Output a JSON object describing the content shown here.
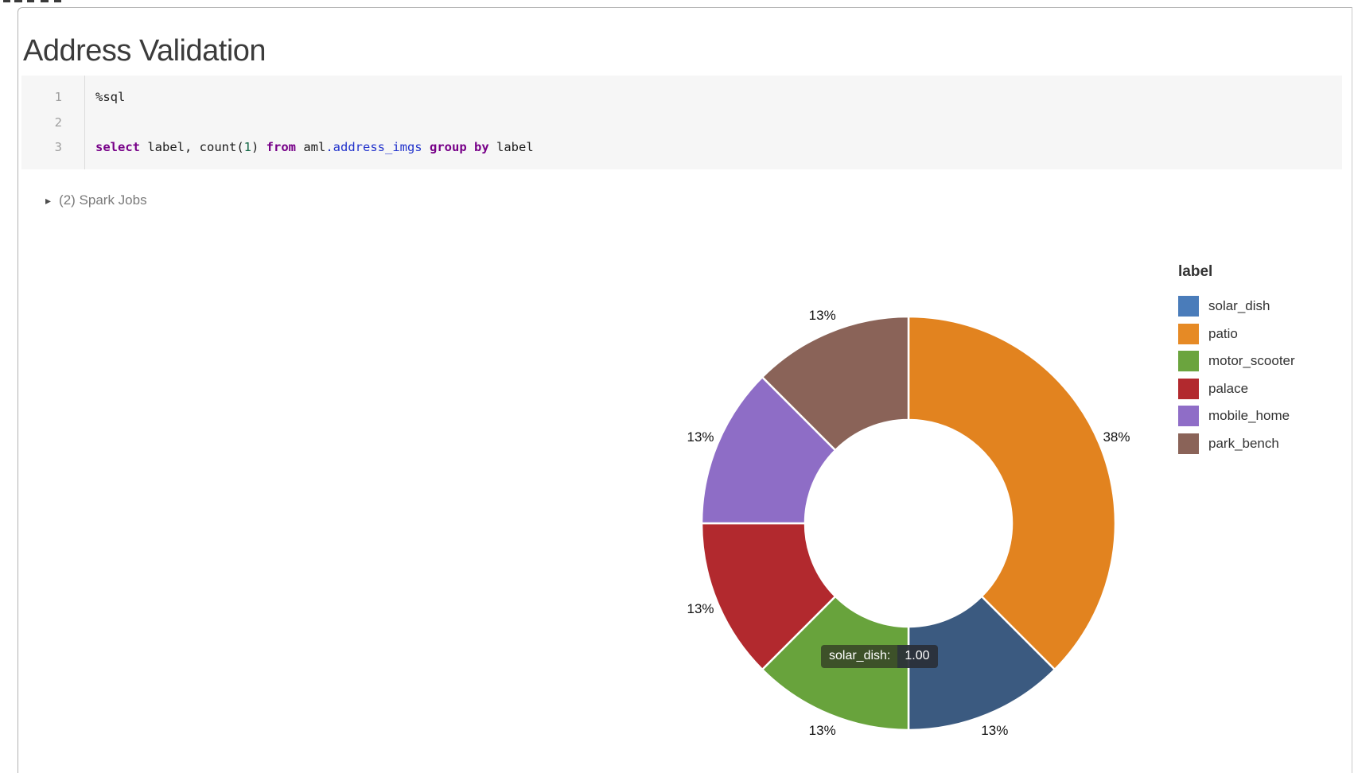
{
  "page": {
    "title": "Address Validation"
  },
  "notebook": {
    "cell": {
      "line_numbers": [
        "1",
        "2",
        "3"
      ],
      "lines": [
        [
          {
            "text": "%sql",
            "style": "plain"
          }
        ],
        [
          {
            "text": " ",
            "style": "plain"
          }
        ],
        [
          {
            "text": "select",
            "style": "keyword"
          },
          {
            "text": " label, count(",
            "style": "plain"
          },
          {
            "text": "1",
            "style": "number"
          },
          {
            "text": ") ",
            "style": "plain"
          },
          {
            "text": "from",
            "style": "keyword"
          },
          {
            "text": " aml",
            "style": "plain"
          },
          {
            "text": ".address_imgs",
            "style": "table"
          },
          {
            "text": " ",
            "style": "plain"
          },
          {
            "text": "group by",
            "style": "keyword"
          },
          {
            "text": " label",
            "style": "plain"
          }
        ]
      ]
    },
    "spark_jobs": {
      "caret": "▸",
      "label": "(2) Spark Jobs"
    }
  },
  "chart_data": {
    "type": "pie",
    "donut": true,
    "legend_title": "label",
    "legend_position": "right",
    "categories": [
      "solar_dish",
      "patio",
      "motor_scooter",
      "palace",
      "mobile_home",
      "park_bench"
    ],
    "values": [
      1,
      3,
      1,
      1,
      1,
      1
    ],
    "total": 8,
    "percent_labels": [
      "13%",
      "38%",
      "13%",
      "13%",
      "13%",
      "13%"
    ],
    "legend_colors": [
      "#4A7CBA",
      "#E68A25",
      "#6BA43E",
      "#B2292E",
      "#8F6DC7",
      "#8A6358"
    ],
    "slice_colors": [
      "#3B5A80",
      "#E2831F",
      "#68A33C",
      "#B2292E",
      "#8E6DC6",
      "#8A6358"
    ],
    "draw_order": [
      "patio",
      "solar_dish",
      "motor_scooter",
      "palace",
      "mobile_home",
      "park_bench"
    ],
    "start_angle_deg": 0,
    "clockwise": true,
    "hovered_slice": "solar_dish",
    "tooltip": {
      "label": "solar_dish:",
      "value": "1.00"
    }
  }
}
